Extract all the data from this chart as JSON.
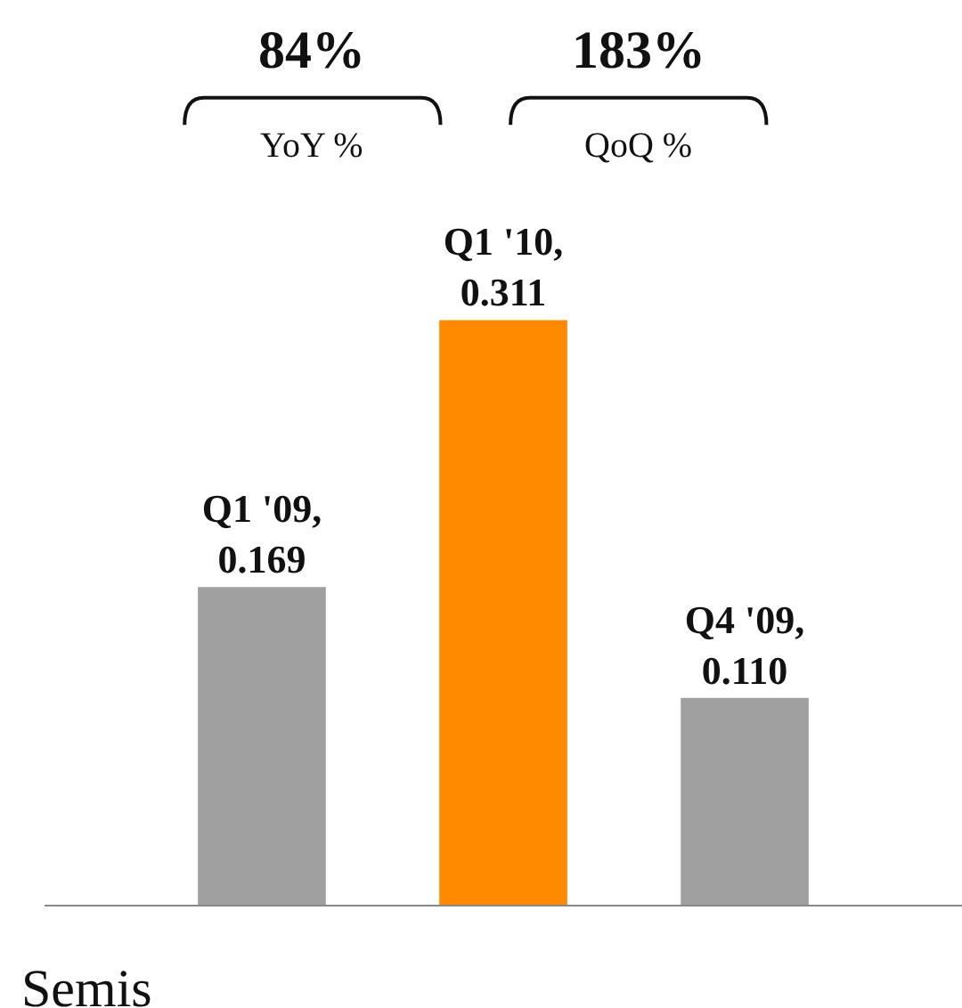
{
  "chart_data": {
    "type": "bar",
    "categories": [
      null,
      null,
      null
    ],
    "values": [
      0.169,
      0.311,
      0.11
    ],
    "value_labels": [
      "Q1 '09,\n0.169",
      "Q1 '10,\n0.311",
      "Q4 '09,\n0.110"
    ],
    "colors": [
      "#a0a0a0",
      "#ff8a00",
      "#a0a0a0"
    ],
    "data_labels": true,
    "xlabel": "Semis",
    "annotations": [
      "84%",
      "YoY %",
      "183%",
      "QoQ %"
    ]
  }
}
